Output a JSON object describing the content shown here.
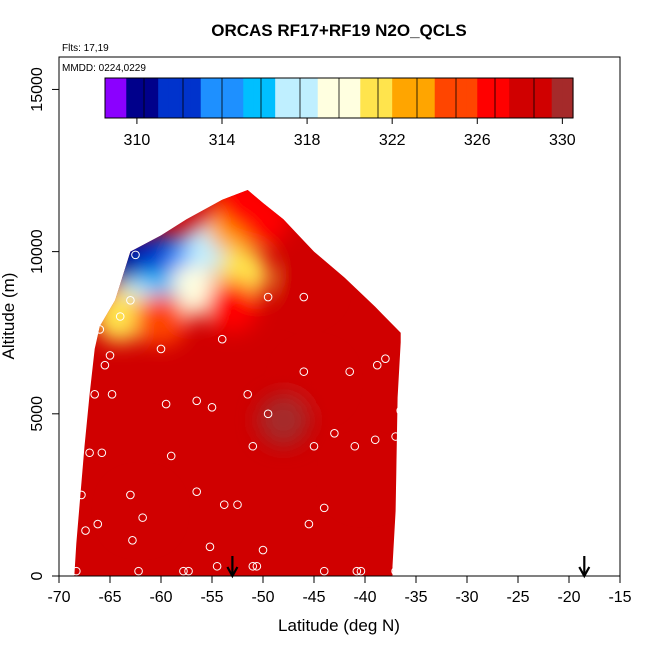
{
  "chart_data": {
    "type": "heatmap",
    "title": "ORCAS RF17+RF19 N2O_QCLS",
    "xlabel": "Latitude (deg N)",
    "ylabel": "Altitude (m)",
    "xlim": [
      -70,
      -15
    ],
    "ylim": [
      0,
      16000
    ],
    "x_ticks": [
      -70,
      -65,
      -60,
      -55,
      -50,
      -45,
      -40,
      -35,
      -30,
      -25,
      -20,
      -15
    ],
    "x_tick_labels": [
      "-70",
      "-65",
      "-60",
      "-55",
      "-50",
      "-45",
      "-40",
      "-35",
      "-30",
      "-25",
      "-20",
      "-15"
    ],
    "y_ticks": [
      0,
      5000,
      10000,
      15000
    ],
    "y_tick_labels": [
      "0",
      "5000",
      "10000",
      "15000"
    ],
    "annotations": {
      "flights": "Flts: 17,19",
      "dates": "MMDD: 0224,0229"
    },
    "colorbar": {
      "min": 308.5,
      "max": 330.5,
      "ticks": [
        310,
        314,
        318,
        322,
        326,
        330
      ],
      "tick_labels": [
        "310",
        "314",
        "318",
        "322",
        "326",
        "330"
      ],
      "colors": [
        "#8B00FF",
        "#00008B",
        "#0033CC",
        "#1E90FF",
        "#00BFFF",
        "#BFEFFF",
        "#FFFFE0",
        "#FFE44D",
        "#FFA500",
        "#FF4500",
        "#FF0000",
        "#D00000",
        "#A52A2A"
      ]
    },
    "field": {
      "background_value": 328.5,
      "upper_region_values": [
        {
          "lat": -63,
          "alt": 9700,
          "value": 311
        },
        {
          "lat": -60,
          "alt": 9700,
          "value": 312
        },
        {
          "lat": -57,
          "alt": 9800,
          "value": 314
        },
        {
          "lat": -55,
          "alt": 10200,
          "value": 318
        },
        {
          "lat": -53,
          "alt": 10800,
          "value": 323
        },
        {
          "lat": -52,
          "alt": 11500,
          "value": 326
        },
        {
          "lat": -50,
          "alt": 11000,
          "value": 327
        },
        {
          "lat": -52,
          "alt": 9300,
          "value": 322
        },
        {
          "lat": -57,
          "alt": 8800,
          "value": 320
        },
        {
          "lat": -61,
          "alt": 8600,
          "value": 316
        },
        {
          "lat": -63,
          "alt": 8300,
          "value": 318
        },
        {
          "lat": -64,
          "alt": 8000,
          "value": 322
        },
        {
          "lat": -60,
          "alt": 7900,
          "value": 325
        },
        {
          "lat": -53,
          "alt": 8300,
          "value": 327
        },
        {
          "lat": -46,
          "alt": 9000,
          "value": 328.5
        },
        {
          "lat": -45,
          "alt": 6000,
          "value": 329.3
        },
        {
          "lat": -48,
          "alt": 4800,
          "value": 329.6
        },
        {
          "lat": -40,
          "alt": 3000,
          "value": 328.8
        },
        {
          "lat": -62,
          "alt": 2000,
          "value": 328.6
        }
      ]
    },
    "coverage_outline": [
      {
        "lat": -68.5,
        "alt": 0
      },
      {
        "lat": -68.3,
        "alt": 1000
      },
      {
        "lat": -67.9,
        "alt": 2500
      },
      {
        "lat": -67.5,
        "alt": 4000
      },
      {
        "lat": -67.0,
        "alt": 5600
      },
      {
        "lat": -66.5,
        "alt": 7000
      },
      {
        "lat": -66.0,
        "alt": 7700
      },
      {
        "lat": -64.5,
        "alt": 8500
      },
      {
        "lat": -63.5,
        "alt": 9500
      },
      {
        "lat": -63.0,
        "alt": 10000
      },
      {
        "lat": -60.0,
        "alt": 10500
      },
      {
        "lat": -57.5,
        "alt": 11000
      },
      {
        "lat": -54.0,
        "alt": 11600
      },
      {
        "lat": -51.5,
        "alt": 11900
      },
      {
        "lat": -50.0,
        "alt": 11500
      },
      {
        "lat": -48.0,
        "alt": 11000
      },
      {
        "lat": -45.0,
        "alt": 10000
      },
      {
        "lat": -42.0,
        "alt": 9200
      },
      {
        "lat": -39.0,
        "alt": 8300
      },
      {
        "lat": -36.5,
        "alt": 7500
      },
      {
        "lat": -36.5,
        "alt": 7200
      },
      {
        "lat": -36.8,
        "alt": 5500
      },
      {
        "lat": -37.0,
        "alt": 2000
      },
      {
        "lat": -37.3,
        "alt": 300
      },
      {
        "lat": -37.3,
        "alt": 0
      }
    ],
    "sample_points": [
      {
        "lat": -68.3,
        "alt": 150
      },
      {
        "lat": -67.4,
        "alt": 1400
      },
      {
        "lat": -66.2,
        "alt": 1600
      },
      {
        "lat": -67.8,
        "alt": 2500
      },
      {
        "lat": -63.0,
        "alt": 2500
      },
      {
        "lat": -61.8,
        "alt": 1800
      },
      {
        "lat": -62.8,
        "alt": 1100
      },
      {
        "lat": -62.2,
        "alt": 150
      },
      {
        "lat": -57.8,
        "alt": 150
      },
      {
        "lat": -57.3,
        "alt": 150
      },
      {
        "lat": -55.2,
        "alt": 900
      },
      {
        "lat": -54.5,
        "alt": 300
      },
      {
        "lat": -51.0,
        "alt": 300
      },
      {
        "lat": -50.6,
        "alt": 300
      },
      {
        "lat": -50.0,
        "alt": 800
      },
      {
        "lat": -44.0,
        "alt": 150
      },
      {
        "lat": -40.8,
        "alt": 150
      },
      {
        "lat": -40.4,
        "alt": 150
      },
      {
        "lat": -37.0,
        "alt": 150
      },
      {
        "lat": -36.6,
        "alt": 300
      },
      {
        "lat": -67.0,
        "alt": 3800
      },
      {
        "lat": -65.8,
        "alt": 3800
      },
      {
        "lat": -59.0,
        "alt": 3700
      },
      {
        "lat": -56.5,
        "alt": 2600
      },
      {
        "lat": -53.8,
        "alt": 2200
      },
      {
        "lat": -52.5,
        "alt": 2200
      },
      {
        "lat": -45.5,
        "alt": 1600
      },
      {
        "lat": -44.0,
        "alt": 2100
      },
      {
        "lat": -66.5,
        "alt": 5600
      },
      {
        "lat": -64.8,
        "alt": 5600
      },
      {
        "lat": -59.5,
        "alt": 5300
      },
      {
        "lat": -56.5,
        "alt": 5400
      },
      {
        "lat": -55.0,
        "alt": 5200
      },
      {
        "lat": -51.5,
        "alt": 5600
      },
      {
        "lat": -49.5,
        "alt": 5000
      },
      {
        "lat": -51.0,
        "alt": 4000
      },
      {
        "lat": -45.0,
        "alt": 4000
      },
      {
        "lat": -43.0,
        "alt": 4400
      },
      {
        "lat": -41.0,
        "alt": 4000
      },
      {
        "lat": -39.0,
        "alt": 4200
      },
      {
        "lat": -37.0,
        "alt": 4300
      },
      {
        "lat": -36.5,
        "alt": 5100
      },
      {
        "lat": -65.5,
        "alt": 6500
      },
      {
        "lat": -65.0,
        "alt": 6800
      },
      {
        "lat": -60.0,
        "alt": 7000
      },
      {
        "lat": -54.0,
        "alt": 7300
      },
      {
        "lat": -46.0,
        "alt": 6300
      },
      {
        "lat": -41.5,
        "alt": 6300
      },
      {
        "lat": -38.8,
        "alt": 6500
      },
      {
        "lat": -38.0,
        "alt": 6700
      },
      {
        "lat": -66.0,
        "alt": 7600
      },
      {
        "lat": -64.0,
        "alt": 8000
      },
      {
        "lat": -63.0,
        "alt": 8500
      },
      {
        "lat": -49.5,
        "alt": 8600
      },
      {
        "lat": -46.0,
        "alt": 8600
      },
      {
        "lat": -62.5,
        "alt": 9900
      }
    ],
    "arrows": [
      {
        "lat": -53.0,
        "label": "flight marker"
      },
      {
        "lat": -18.5,
        "label": "flight marker"
      }
    ]
  }
}
